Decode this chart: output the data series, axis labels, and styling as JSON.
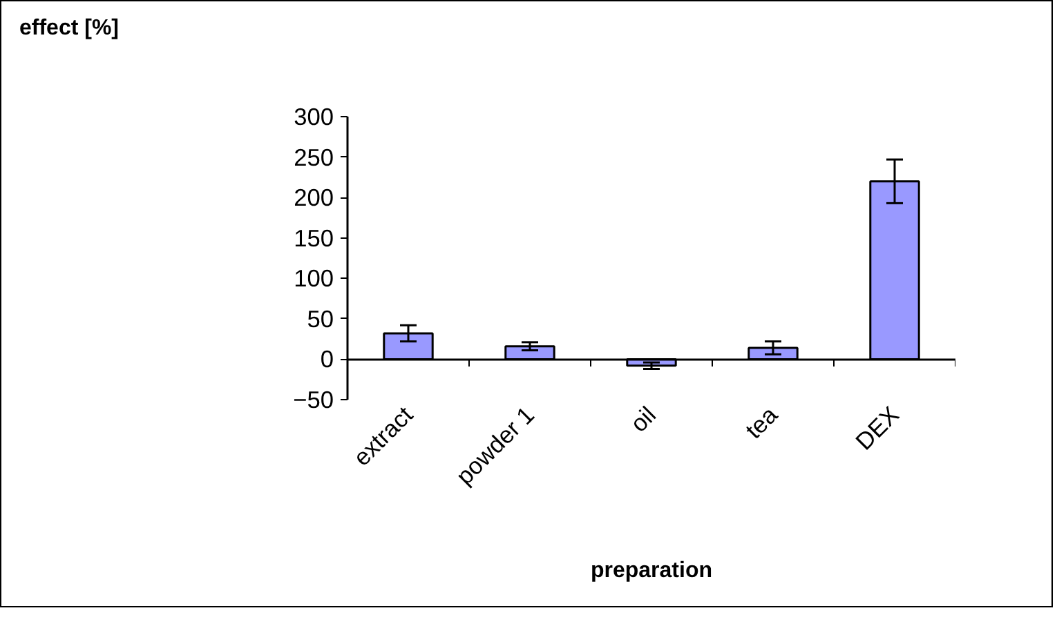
{
  "chart_data": {
    "type": "bar",
    "annotations": [
      "effect [%]"
    ],
    "xlabel": "preparation",
    "categories": [
      "extract",
      "powder 1",
      "oil",
      "tea",
      "DEX"
    ],
    "values": [
      32,
      16,
      -8,
      14,
      220
    ],
    "errors": [
      10,
      5,
      4,
      8,
      27
    ],
    "color": "#9999ff",
    "ylim": [
      -50,
      300
    ],
    "yticks": [
      -50,
      0,
      50,
      100,
      150,
      200,
      250,
      300
    ],
    "grid": false
  }
}
